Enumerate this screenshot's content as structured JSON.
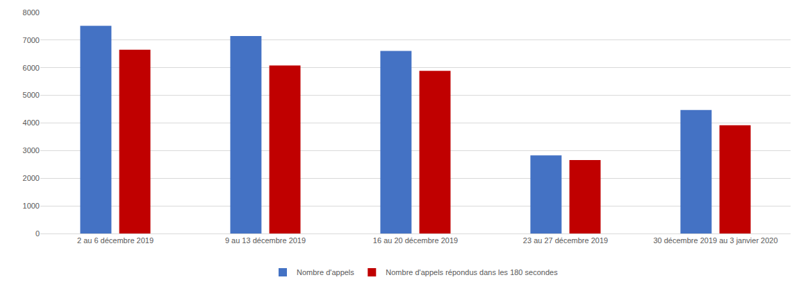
{
  "chart_data": {
    "type": "bar",
    "categories": [
      "2 au 6 décembre 2019",
      "9 au 13 décembre 2019",
      "16 au 20 décembre 2019",
      "23 au 27 décembre 2019",
      "30 décembre 2019 au 3 janvier 2020"
    ],
    "series": [
      {
        "name": "Nombre d'appels",
        "color": "#4472c4",
        "values": [
          7520,
          7150,
          6610,
          2830,
          4470
        ]
      },
      {
        "name": "Nombre d'appels répondus dans les 180 secondes",
        "color": "#c00000",
        "values": [
          6650,
          6080,
          5890,
          2660,
          3920
        ]
      }
    ],
    "ylim": [
      0,
      8000
    ],
    "yticks": [
      0,
      1000,
      2000,
      3000,
      4000,
      5000,
      6000,
      7000,
      8000
    ],
    "grid": true,
    "legend": "bottom"
  }
}
